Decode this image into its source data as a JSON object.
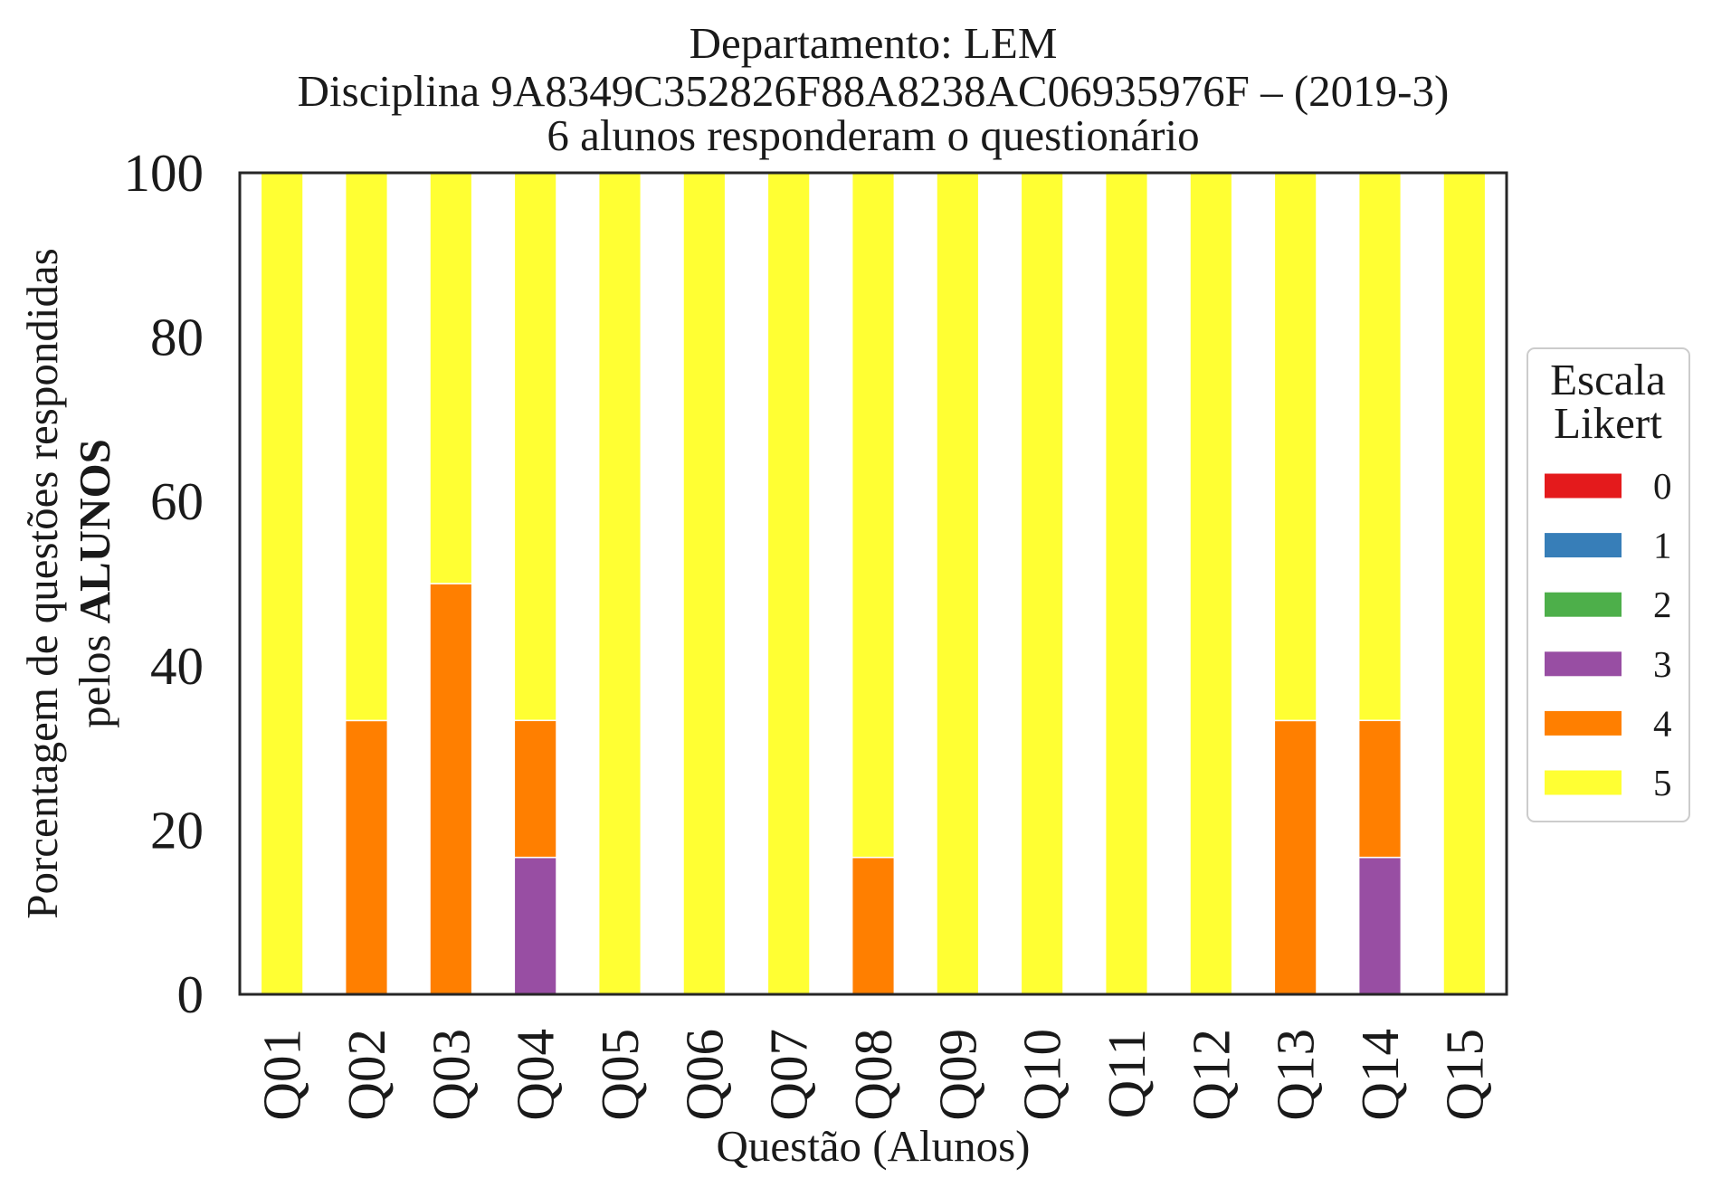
{
  "chart_data": {
    "type": "bar",
    "stacked": true,
    "title": [
      "Departamento: LEM",
      "Disciplina 9A8349C352826F88A8238AC06935976F – (2019-3)",
      "6 alunos responderam o questionário"
    ],
    "xlabel": "Questão (Alunos)",
    "ylabel": {
      "line1": "Porcentagem de questões respondidas",
      "line2": "pelos",
      "line2_bold": "ALUNOS"
    },
    "ylim": [
      0,
      100
    ],
    "yticks": [
      0,
      20,
      40,
      60,
      80,
      100
    ],
    "grid": false,
    "categories": [
      "Q01",
      "Q02",
      "Q03",
      "Q04",
      "Q05",
      "Q06",
      "Q07",
      "Q08",
      "Q09",
      "Q10",
      "Q11",
      "Q12",
      "Q13",
      "Q14",
      "Q15"
    ],
    "legend": {
      "title": [
        "Escala",
        "Likert"
      ],
      "position": "right"
    },
    "series": [
      {
        "name": "0",
        "color": "#e41a1c",
        "values": [
          0,
          0,
          0,
          0,
          0,
          0,
          0,
          0,
          0,
          0,
          0,
          0,
          0,
          0,
          0
        ]
      },
      {
        "name": "1",
        "color": "#377eb8",
        "values": [
          0,
          0,
          0,
          0,
          0,
          0,
          0,
          0,
          0,
          0,
          0,
          0,
          0,
          0,
          0
        ]
      },
      {
        "name": "2",
        "color": "#4daf4a",
        "values": [
          0,
          0,
          0,
          0,
          0,
          0,
          0,
          0,
          0,
          0,
          0,
          0,
          0,
          0,
          0
        ]
      },
      {
        "name": "3",
        "color": "#984ea3",
        "values": [
          0,
          0,
          0,
          16.67,
          0,
          0,
          0,
          0,
          0,
          0,
          0,
          0,
          0,
          16.67,
          0
        ]
      },
      {
        "name": "4",
        "color": "#ff7f00",
        "values": [
          0,
          33.33,
          50,
          16.67,
          0,
          0,
          0,
          16.67,
          0,
          0,
          0,
          0,
          33.33,
          16.67,
          0
        ]
      },
      {
        "name": "5",
        "color": "#ffff33",
        "values": [
          100,
          66.67,
          50,
          66.67,
          100,
          100,
          100,
          83.33,
          100,
          100,
          100,
          100,
          66.67,
          66.67,
          100
        ]
      }
    ]
  }
}
